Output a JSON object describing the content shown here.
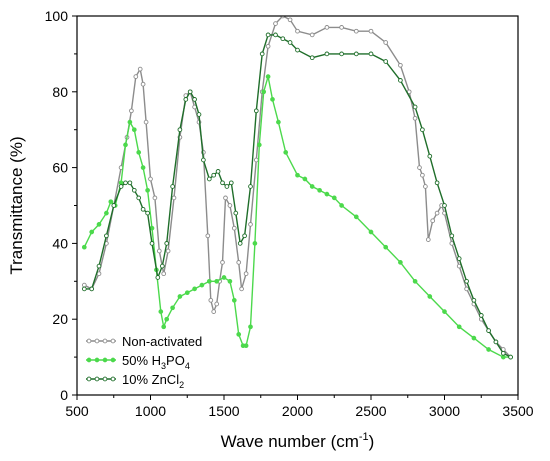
{
  "chart_data": {
    "type": "line",
    "xlabel": "Wave number (cm⁻¹)",
    "xlabel_parts": {
      "main": "Wave number (cm",
      "sup": "-1",
      "close": ")"
    },
    "ylabel": "Transmittance (%)",
    "xlim": [
      500,
      3500
    ],
    "ylim": [
      0,
      100
    ],
    "x_ticks": [
      500,
      1000,
      1500,
      2000,
      2500,
      3000,
      3500
    ],
    "y_ticks": [
      0,
      20,
      40,
      60,
      80,
      100
    ],
    "grid": false,
    "legend_position": "bottom-left",
    "series": [
      {
        "name": "Non-activated",
        "name_parts": [
          {
            "t": "Non-activated"
          }
        ],
        "color": "#8c8c8c",
        "marker": "open-circle-small",
        "x": [
          550,
          600,
          650,
          700,
          750,
          800,
          840,
          870,
          900,
          930,
          950,
          970,
          1000,
          1030,
          1060,
          1090,
          1120,
          1160,
          1200,
          1240,
          1270,
          1300,
          1330,
          1360,
          1390,
          1410,
          1430,
          1450,
          1470,
          1490,
          1510,
          1540,
          1570,
          1600,
          1620,
          1650,
          1680,
          1720,
          1760,
          1800,
          1850,
          1900,
          1950,
          2000,
          2100,
          2200,
          2300,
          2400,
          2500,
          2600,
          2700,
          2760,
          2800,
          2830,
          2850,
          2870,
          2890,
          2920,
          2950,
          2980,
          3000,
          3050,
          3100,
          3150,
          3200,
          3250,
          3300,
          3350,
          3400,
          3450
        ],
        "y": [
          29,
          28,
          32,
          40,
          50,
          60,
          68,
          75,
          84,
          86,
          82,
          72,
          57,
          52,
          38,
          32,
          38,
          52,
          68,
          79,
          80,
          76,
          72,
          64,
          42,
          25,
          22,
          24,
          30,
          35,
          52,
          50,
          44,
          35,
          28,
          32,
          45,
          62,
          80,
          92,
          98,
          100,
          99,
          96,
          95,
          97,
          97,
          96,
          96,
          93,
          87,
          80,
          73,
          60,
          58,
          55,
          41,
          46,
          48,
          50,
          48,
          40,
          34,
          28,
          24,
          20,
          17,
          14,
          12,
          10
        ]
      },
      {
        "name": "50% H₃PO₄",
        "name_parts": [
          {
            "t": "50% H"
          },
          {
            "t": "3",
            "sub": true
          },
          {
            "t": "PO"
          },
          {
            "t": "4",
            "sub": true
          }
        ],
        "color": "#4cd94c",
        "marker": "filled-circle-small",
        "x": [
          550,
          600,
          650,
          700,
          730,
          760,
          800,
          830,
          860,
          890,
          920,
          950,
          980,
          1010,
          1040,
          1070,
          1090,
          1110,
          1150,
          1200,
          1250,
          1300,
          1350,
          1400,
          1450,
          1500,
          1540,
          1570,
          1600,
          1630,
          1650,
          1680,
          1710,
          1740,
          1770,
          1800,
          1830,
          1870,
          1920,
          2000,
          2050,
          2100,
          2150,
          2200,
          2250,
          2300,
          2400,
          2500,
          2600,
          2700,
          2800,
          2900,
          3000,
          3100,
          3200,
          3300,
          3400,
          3450
        ],
        "y": [
          39,
          43,
          45,
          48,
          51,
          50,
          56,
          66,
          72,
          70,
          64,
          60,
          54,
          44,
          33,
          22,
          18,
          20,
          23,
          26,
          27,
          28,
          29,
          30,
          30,
          31,
          30,
          25,
          16,
          13,
          13,
          18,
          40,
          66,
          80,
          84,
          78,
          72,
          64,
          58,
          57,
          55,
          54,
          53,
          52,
          50,
          47,
          43,
          39,
          35,
          30,
          26,
          22,
          18,
          15,
          12,
          10,
          10
        ]
      },
      {
        "name": "10% ZnCl₂",
        "name_parts": [
          {
            "t": "10% ZnCl"
          },
          {
            "t": "2",
            "sub": true
          }
        ],
        "color": "#1f6e2a",
        "marker": "open-circle-small",
        "x": [
          550,
          600,
          650,
          700,
          750,
          800,
          830,
          860,
          890,
          920,
          950,
          980,
          1010,
          1050,
          1080,
          1110,
          1150,
          1200,
          1240,
          1270,
          1300,
          1330,
          1360,
          1400,
          1430,
          1460,
          1490,
          1520,
          1550,
          1580,
          1610,
          1640,
          1680,
          1720,
          1760,
          1800,
          1850,
          1900,
          1950,
          2000,
          2100,
          2200,
          2300,
          2400,
          2500,
          2600,
          2700,
          2800,
          2850,
          2900,
          2950,
          3000,
          3050,
          3100,
          3150,
          3200,
          3250,
          3300,
          3350,
          3400,
          3450
        ],
        "y": [
          28,
          28,
          34,
          42,
          50,
          55,
          56,
          56,
          54,
          52,
          49,
          48,
          40,
          31,
          34,
          40,
          55,
          70,
          78,
          80,
          78,
          74,
          62,
          57,
          58,
          59,
          56,
          55,
          56,
          48,
          40,
          42,
          55,
          75,
          90,
          95,
          95,
          94,
          93,
          91,
          89,
          90,
          90,
          90,
          90,
          88,
          83,
          76,
          70,
          63,
          56,
          50,
          42,
          36,
          30,
          25,
          21,
          17,
          14,
          11,
          10
        ]
      }
    ]
  }
}
